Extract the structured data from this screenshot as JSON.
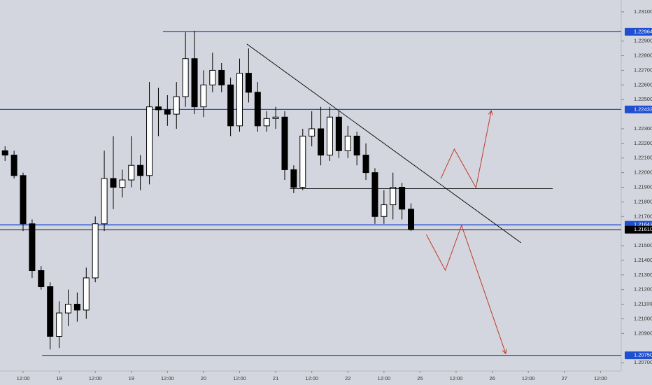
{
  "chart_data": {
    "type": "candlestick",
    "up_color": "#ffffff",
    "down_color": "#000000",
    "open": [
      1.2215,
      1.2212,
      1.2198,
      1.2165,
      1.2133,
      1.2122,
      1.2088,
      1.2104,
      1.211,
      1.2106,
      1.2128,
      1.2165,
      1.2196,
      1.219,
      1.2195,
      1.2205,
      1.2198,
      1.2245,
      1.2243,
      1.224,
      1.2252,
      1.2278,
      1.2245,
      1.226,
      1.227,
      1.226,
      1.2232,
      1.2268,
      1.2255,
      1.2232,
      1.2237,
      1.2238,
      1.2202,
      1.219,
      1.2225,
      1.223,
      1.2212,
      1.2238,
      1.2215,
      1.2225,
      1.2212,
      1.22,
      1.217,
      1.2178,
      1.219,
      1.2175
    ],
    "high": [
      1.2218,
      1.2215,
      1.22,
      1.2168,
      1.2136,
      1.2125,
      1.2112,
      1.212,
      1.2118,
      1.2135,
      1.217,
      1.2215,
      1.2225,
      1.2202,
      1.2225,
      1.2212,
      1.2262,
      1.2258,
      1.2253,
      1.2262,
      1.2296,
      1.2297,
      1.227,
      1.2282,
      1.2275,
      1.2265,
      1.2278,
      1.2285,
      1.2262,
      1.2242,
      1.2245,
      1.2242,
      1.2205,
      1.223,
      1.2242,
      1.2245,
      1.2245,
      1.2242,
      1.2232,
      1.2228,
      1.222,
      1.2203,
      1.2188,
      1.22,
      1.2193,
      1.2179
    ],
    "low": [
      1.2208,
      1.2196,
      1.216,
      1.2128,
      1.212,
      1.2079,
      1.208,
      1.2095,
      1.2098,
      1.21,
      1.2125,
      1.216,
      1.2175,
      1.2183,
      1.219,
      1.2188,
      1.2192,
      1.2225,
      1.2232,
      1.223,
      1.2245,
      1.224,
      1.2238,
      1.2255,
      1.2255,
      1.2225,
      1.2228,
      1.2248,
      1.2228,
      1.2228,
      1.223,
      1.2195,
      1.2186,
      1.2188,
      1.2218,
      1.2205,
      1.2208,
      1.221,
      1.221,
      1.2205,
      1.2195,
      1.2165,
      1.2165,
      1.2168,
      1.2168,
      1.216
    ],
    "close": [
      1.2212,
      1.2198,
      1.2165,
      1.2133,
      1.2122,
      1.2088,
      1.2104,
      1.211,
      1.2106,
      1.2128,
      1.2165,
      1.2196,
      1.219,
      1.2195,
      1.2205,
      1.2198,
      1.2245,
      1.2243,
      1.224,
      1.2252,
      1.2278,
      1.2245,
      1.226,
      1.227,
      1.226,
      1.2232,
      1.2268,
      1.2255,
      1.2232,
      1.2237,
      1.2238,
      1.2202,
      1.219,
      1.2225,
      1.223,
      1.2212,
      1.2238,
      1.2215,
      1.2225,
      1.2212,
      1.22,
      1.217,
      1.2178,
      1.219,
      1.2175,
      1.2161
    ],
    "xlim": [
      -0.56,
      68.3
    ],
    "ylim": [
      1.20643,
      1.23181
    ],
    "xticks": [
      {
        "value": 2,
        "label": "12:00"
      },
      {
        "value": 6,
        "label": "18"
      },
      {
        "value": 10,
        "label": "12:00"
      },
      {
        "value": 14,
        "label": "19"
      },
      {
        "value": 18,
        "label": "12:00"
      },
      {
        "value": 22,
        "label": "20"
      },
      {
        "value": 26,
        "label": "12:00"
      },
      {
        "value": 30,
        "label": "21"
      },
      {
        "value": 34,
        "label": "12:00"
      },
      {
        "value": 38,
        "label": "22"
      },
      {
        "value": 42,
        "label": "12:00"
      },
      {
        "value": 46,
        "label": "25"
      },
      {
        "value": 50,
        "label": "12:00"
      },
      {
        "value": 54,
        "label": "26"
      },
      {
        "value": 58,
        "label": "12:00"
      },
      {
        "value": 62,
        "label": "27"
      },
      {
        "value": 66,
        "label": "12:00"
      }
    ],
    "yticks": [
      {
        "value": 1.231,
        "label": "1.23100"
      },
      {
        "value": 1.229,
        "label": "1.22900"
      },
      {
        "value": 1.228,
        "label": "1.22800"
      },
      {
        "value": 1.227,
        "label": "1.22700"
      },
      {
        "value": 1.226,
        "label": "1.22600"
      },
      {
        "value": 1.225,
        "label": "1.22500"
      },
      {
        "value": 1.223,
        "label": "1.22300"
      },
      {
        "value": 1.222,
        "label": "1.22200"
      },
      {
        "value": 1.221,
        "label": "1.22100"
      },
      {
        "value": 1.22,
        "label": "1.22000"
      },
      {
        "value": 1.219,
        "label": "1.21900"
      },
      {
        "value": 1.218,
        "label": "1.21800"
      },
      {
        "value": 1.217,
        "label": "1.21700"
      },
      {
        "value": 1.215,
        "label": "1.21500"
      },
      {
        "value": 1.214,
        "label": "1.21400"
      },
      {
        "value": 1.213,
        "label": "1.21300"
      },
      {
        "value": 1.212,
        "label": "1.21200"
      },
      {
        "value": 1.211,
        "label": "1.21100"
      },
      {
        "value": 1.21,
        "label": "1.21000"
      },
      {
        "value": 1.209,
        "label": "1.20900"
      },
      {
        "value": 1.207,
        "label": "1.20700"
      }
    ],
    "grid": false,
    "levels": [
      {
        "value": 1.22964,
        "label": "1.22964",
        "color": "#1f4fd1",
        "from": 17.5
      },
      {
        "value": 1.22432,
        "label": "1.22432",
        "color": "#1f4fd1"
      },
      {
        "value": 1.21643,
        "label": "1.21643",
        "color": "#1f4fd1"
      },
      {
        "value": 1.2161,
        "label": "1.21610",
        "color": "#000000"
      },
      {
        "value": 1.2075,
        "label": "1.20750",
        "color": "#1f4fd1",
        "from": 4.1
      }
    ],
    "lines": [
      {
        "x": [
          26.8,
          57.2
        ],
        "y": [
          1.2288,
          1.2152
        ],
        "color": "#000000"
      },
      {
        "x": [
          31.6,
          60.7
        ],
        "y": [
          1.2189,
          1.2189
        ],
        "color": "#000000"
      }
    ],
    "arrows": [
      {
        "x": [
          48.3,
          49.8,
          52.2,
          53.9
        ],
        "y": [
          1.21959,
          1.22161,
          1.21897,
          1.22424
        ],
        "color": "#c0392b"
      },
      {
        "x": [
          46.7,
          48.8,
          50.6,
          55.5
        ],
        "y": [
          1.21576,
          1.21332,
          1.21639,
          1.20762
        ],
        "color": "#c0392b"
      }
    ]
  }
}
